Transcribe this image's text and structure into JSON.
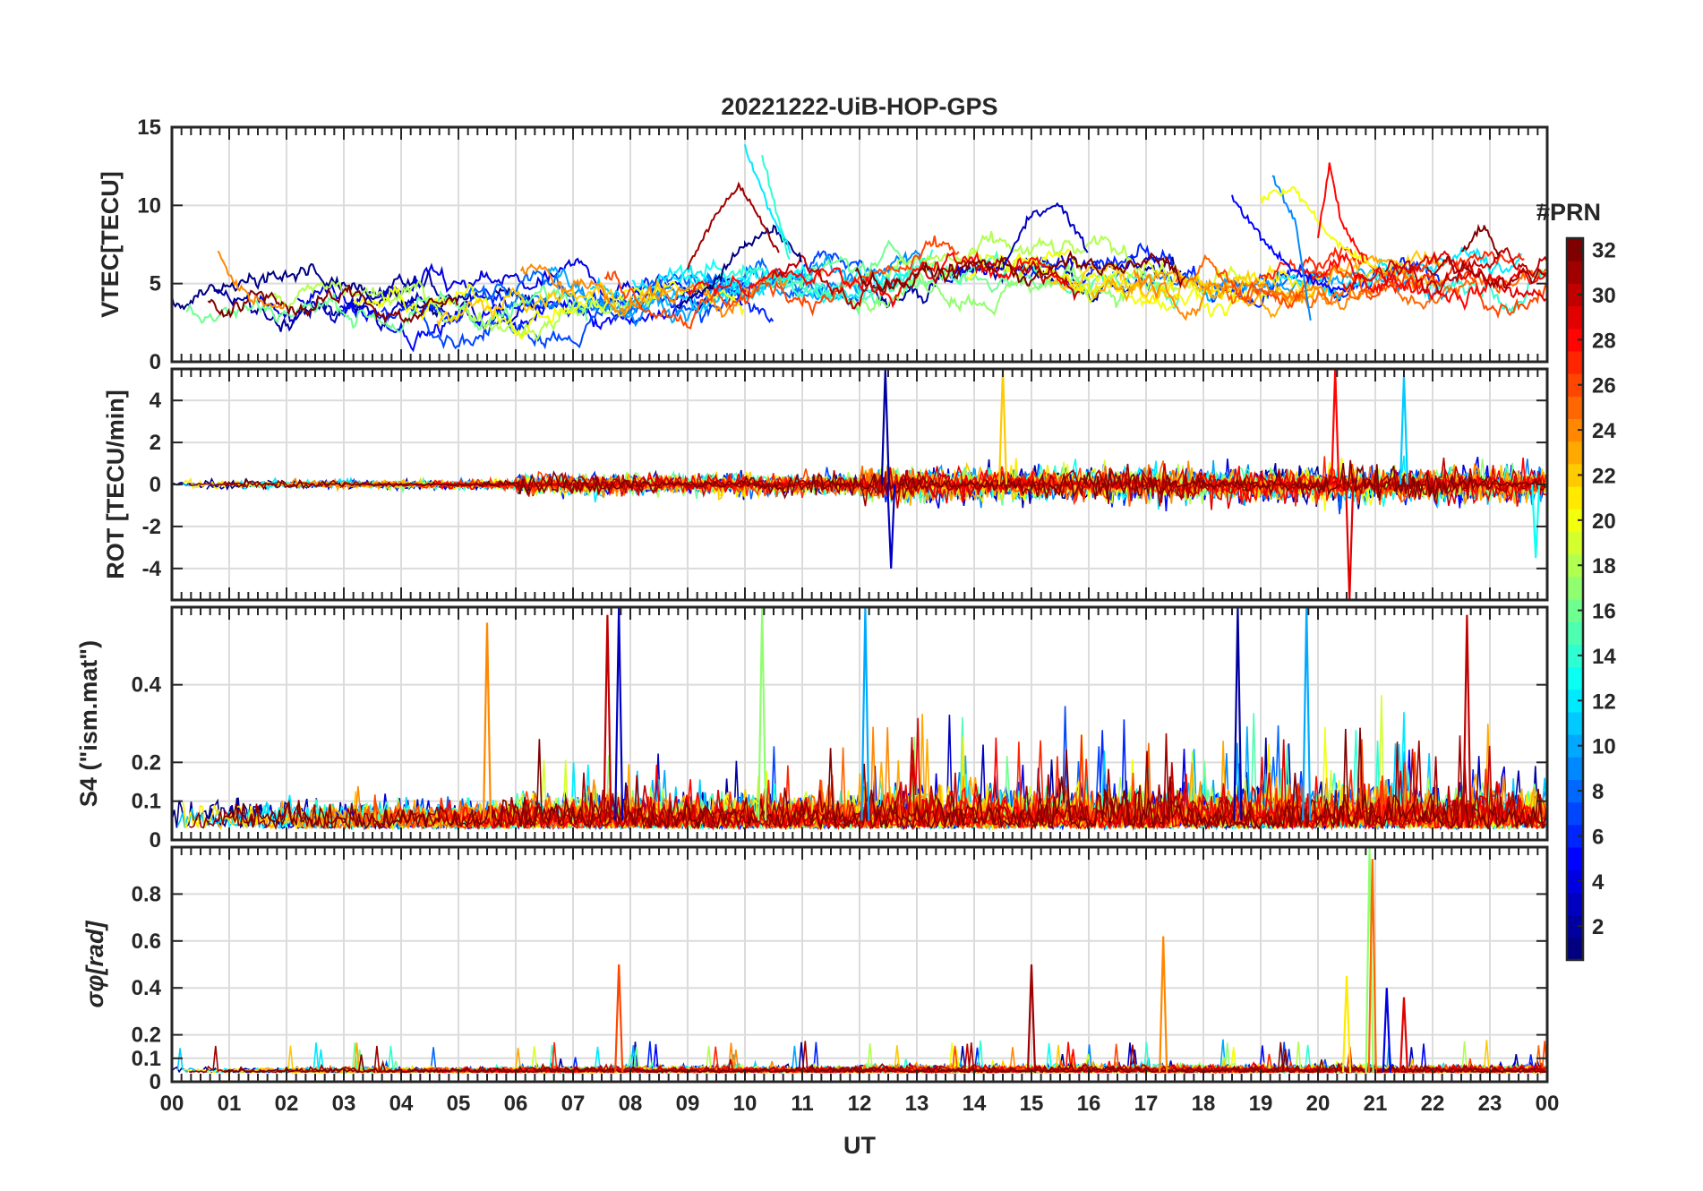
{
  "figure": {
    "title": "20221222-UiB-HOP-GPS",
    "colormap": "jet",
    "xlabel": "UT",
    "xtick_labels": [
      "00",
      "01",
      "02",
      "03",
      "04",
      "05",
      "06",
      "07",
      "08",
      "09",
      "10",
      "11",
      "12",
      "13",
      "14",
      "15",
      "16",
      "17",
      "18",
      "19",
      "20",
      "21",
      "22",
      "23",
      "00"
    ]
  },
  "colorbar": {
    "title": "#PRN",
    "range": [
      1,
      32
    ],
    "ticks": [
      2,
      4,
      6,
      8,
      10,
      12,
      14,
      16,
      18,
      20,
      22,
      24,
      26,
      28,
      30,
      32
    ],
    "tick_labels": [
      "2",
      "4",
      "6",
      "8",
      "10",
      "12",
      "14",
      "16",
      "18",
      "20",
      "22",
      "24",
      "26",
      "28",
      "30",
      "32"
    ]
  },
  "chart_data": [
    {
      "type": "line",
      "panel": "vtec",
      "ylabel": "VTEC[TECU]",
      "ylim": [
        0,
        15
      ],
      "yticks": [
        0,
        5,
        10,
        15
      ],
      "ytick_labels": [
        "0",
        "5",
        "10",
        "15"
      ],
      "xlim": [
        0,
        24
      ],
      "grid": true,
      "series_color_by": "PRN",
      "series": [
        {
          "prn": 1,
          "x": [
            8.8,
            9.4,
            10.0,
            10.5,
            11.0
          ],
          "y": [
            3.5,
            4.8,
            7.5,
            8.5,
            6.5
          ]
        },
        {
          "prn": 3,
          "x": [
            14.5,
            15.0,
            15.5,
            16.0
          ],
          "y": [
            6.0,
            9.5,
            10.0,
            7.0
          ]
        },
        {
          "prn": 5,
          "x": [
            18.5,
            19.0,
            19.5,
            20.0,
            20.5
          ],
          "y": [
            10.5,
            8.0,
            6.0,
            5.0,
            4.5
          ]
        },
        {
          "prn": 9,
          "x": [
            19.2,
            19.6,
            19.9
          ],
          "y": [
            12.0,
            9.0,
            2.0
          ]
        },
        {
          "prn": 12,
          "x": [
            10.0,
            10.4,
            10.8
          ],
          "y": [
            13.8,
            10.0,
            7.0
          ]
        },
        {
          "prn": 14,
          "x": [
            10.3,
            10.8
          ],
          "y": [
            13.2,
            6.0
          ]
        },
        {
          "prn": 20,
          "x": [
            19.0,
            19.6,
            20.2,
            21.0
          ],
          "y": [
            10.5,
            11.0,
            8.0,
            6.0
          ]
        },
        {
          "prn": 24,
          "x": [
            0.8,
            1.0,
            1.4,
            2.0
          ],
          "y": [
            7.2,
            5.5,
            4.0,
            3.5
          ]
        },
        {
          "prn": 28,
          "x": [
            20.0,
            20.2,
            20.4,
            20.8
          ],
          "y": [
            8.0,
            12.5,
            9.0,
            6.5
          ]
        },
        {
          "prn": 31,
          "x": [
            9.0,
            9.5,
            9.9,
            10.2,
            10.6
          ],
          "y": [
            6.0,
            9.5,
            11.3,
            9.5,
            7.0
          ]
        },
        {
          "prn": 32,
          "x": [
            22.5,
            22.9,
            23.2
          ],
          "y": [
            7.0,
            8.7,
            6.5
          ]
        }
      ]
    },
    {
      "type": "line",
      "panel": "rot",
      "ylabel": "ROT [TECU/min]",
      "ylim": [
        -5.5,
        5.5
      ],
      "yticks": [
        -4,
        -2,
        0,
        2,
        4
      ],
      "ytick_labels": [
        "-4",
        "-2",
        "0",
        "2",
        "4"
      ],
      "xlim": [
        0,
        24
      ],
      "grid": true,
      "series_color_by": "PRN",
      "spikes": [
        {
          "prn": 2,
          "x": 12.45,
          "y": 5.5
        },
        {
          "prn": 3,
          "x": 12.55,
          "y": -4.0
        },
        {
          "prn": 22,
          "x": 14.5,
          "y": 5.5
        },
        {
          "prn": 28,
          "x": 20.3,
          "y": 5.5
        },
        {
          "prn": 29,
          "x": 20.55,
          "y": -5.5
        },
        {
          "prn": 11,
          "x": 21.5,
          "y": 5.2
        },
        {
          "prn": 13,
          "x": 23.8,
          "y": -3.5
        }
      ]
    },
    {
      "type": "line",
      "panel": "s4",
      "ylabel": "S4 (\"ism.mat\")",
      "ylim": [
        0,
        0.6
      ],
      "yticks": [
        0,
        0.1,
        0.2,
        0.4
      ],
      "ytick_labels": [
        "0",
        "0.1",
        "0.2",
        "0.4"
      ],
      "xlim": [
        0,
        24
      ],
      "grid": true,
      "series_color_by": "PRN",
      "spikes": [
        {
          "prn": 3,
          "x": 7.8,
          "y": 0.6
        },
        {
          "prn": 30,
          "x": 7.6,
          "y": 0.58
        },
        {
          "prn": 24,
          "x": 5.5,
          "y": 0.56
        },
        {
          "prn": 17,
          "x": 10.3,
          "y": 0.6
        },
        {
          "prn": 10,
          "x": 12.1,
          "y": 0.6
        },
        {
          "prn": 2,
          "x": 18.6,
          "y": 0.6
        },
        {
          "prn": 10,
          "x": 19.8,
          "y": 0.6
        },
        {
          "prn": 30,
          "x": 22.6,
          "y": 0.58
        }
      ]
    },
    {
      "type": "line",
      "panel": "sigma_phi",
      "ylabel": "σφ[rad]",
      "ylim": [
        0,
        1.0
      ],
      "yticks": [
        0,
        0.1,
        0.2,
        0.4,
        0.6,
        0.8
      ],
      "ytick_labels": [
        "0",
        "0.1",
        "0.2",
        "0.4",
        "0.6",
        "0.8"
      ],
      "xlim": [
        0,
        24
      ],
      "grid": true,
      "series_color_by": "PRN",
      "spikes": [
        {
          "prn": 26,
          "x": 7.8,
          "y": 0.5
        },
        {
          "prn": 31,
          "x": 15.0,
          "y": 0.5
        },
        {
          "prn": 24,
          "x": 17.3,
          "y": 0.62
        },
        {
          "prn": 17,
          "x": 20.9,
          "y": 1.0
        },
        {
          "prn": 25,
          "x": 20.95,
          "y": 0.95
        },
        {
          "prn": 21,
          "x": 20.5,
          "y": 0.45
        },
        {
          "prn": 4,
          "x": 21.2,
          "y": 0.4
        },
        {
          "prn": 29,
          "x": 21.5,
          "y": 0.36
        }
      ]
    }
  ]
}
